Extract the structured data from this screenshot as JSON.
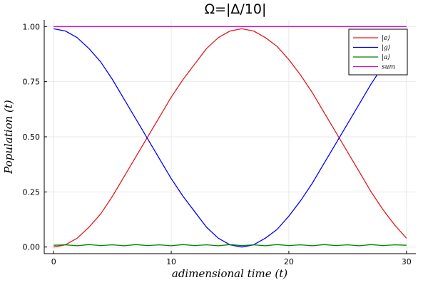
{
  "chart_data": {
    "type": "line",
    "title": "Ω=|Δ/10|",
    "xlabel": "adimensional time (t)",
    "ylabel": "Population (t)",
    "xlim": [
      -0.8,
      30.8
    ],
    "ylim": [
      -0.03,
      1.03
    ],
    "x_ticks": [
      0,
      10,
      20,
      30
    ],
    "y_ticks": [
      0.0,
      0.25,
      0.5,
      0.75,
      1.0
    ],
    "x_tick_labels": [
      "0",
      "10",
      "20",
      "30"
    ],
    "y_tick_labels": [
      "0.00",
      "0.25",
      "0.50",
      "0.75",
      "1.00"
    ],
    "grid": true,
    "legend_position": "top-right",
    "x": [
      0,
      1,
      2,
      3,
      4,
      5,
      6,
      7,
      8,
      9,
      10,
      11,
      12,
      13,
      14,
      15,
      16,
      17,
      18,
      19,
      20,
      21,
      22,
      23,
      24,
      25,
      26,
      27,
      28,
      29,
      30
    ],
    "series": [
      {
        "name": "|e⟩",
        "color": "#e41a1c",
        "values": [
          0.0,
          0.01,
          0.04,
          0.09,
          0.15,
          0.23,
          0.32,
          0.41,
          0.5,
          0.59,
          0.68,
          0.76,
          0.83,
          0.9,
          0.95,
          0.98,
          0.99,
          0.98,
          0.95,
          0.91,
          0.85,
          0.78,
          0.7,
          0.61,
          0.52,
          0.43,
          0.34,
          0.25,
          0.17,
          0.1,
          0.04
        ]
      },
      {
        "name": "|g⟩",
        "color": "#0000ff",
        "values": [
          0.99,
          0.98,
          0.95,
          0.9,
          0.84,
          0.76,
          0.67,
          0.58,
          0.49,
          0.4,
          0.31,
          0.23,
          0.16,
          0.09,
          0.04,
          0.01,
          0.0,
          0.01,
          0.04,
          0.08,
          0.14,
          0.21,
          0.29,
          0.38,
          0.47,
          0.56,
          0.65,
          0.74,
          0.82,
          0.89,
          0.95
        ]
      },
      {
        "name": "|a⟩",
        "color": "#008000",
        "values": [
          0.008,
          0.01,
          0.006,
          0.011,
          0.007,
          0.01,
          0.006,
          0.011,
          0.007,
          0.01,
          0.006,
          0.011,
          0.007,
          0.01,
          0.006,
          0.011,
          0.007,
          0.01,
          0.006,
          0.011,
          0.007,
          0.01,
          0.006,
          0.011,
          0.007,
          0.01,
          0.006,
          0.011,
          0.007,
          0.01,
          0.008
        ]
      },
      {
        "name": "sum",
        "color": "#dd00dd",
        "values": [
          1.0,
          1.0,
          1.0,
          1.0,
          1.0,
          1.0,
          1.0,
          1.0,
          1.0,
          1.0,
          1.0,
          1.0,
          1.0,
          1.0,
          1.0,
          1.0,
          1.0,
          1.0,
          1.0,
          1.0,
          1.0,
          1.0,
          1.0,
          1.0,
          1.0,
          1.0,
          1.0,
          1.0,
          1.0,
          1.0,
          1.0
        ]
      }
    ]
  }
}
